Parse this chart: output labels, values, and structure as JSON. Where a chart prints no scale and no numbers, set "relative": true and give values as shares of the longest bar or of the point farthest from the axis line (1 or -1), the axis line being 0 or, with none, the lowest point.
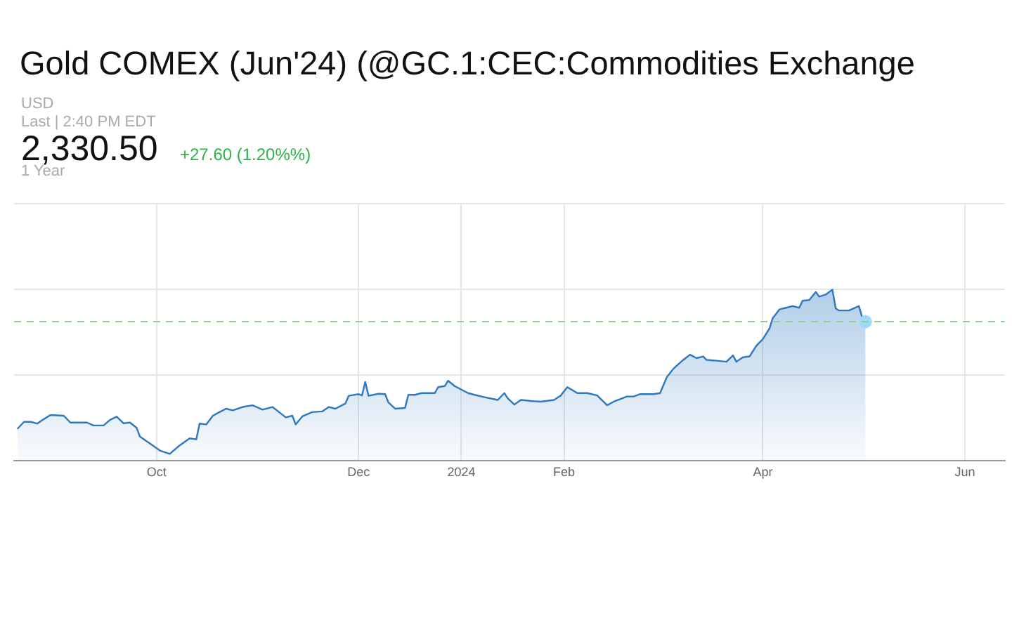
{
  "chart_data": {
    "type": "area",
    "title": "Gold COMEX (Jun'24) (@GC.1:CEC:Commodities Exchange",
    "annotations": [
      "USD",
      "Last | 2:40 PM EDT",
      "2,330.50",
      "+27.60 (1.20%%)",
      "1 Year"
    ],
    "relative": true,
    "color": "#2e78c0",
    "grid": true,
    "legend": false,
    "marker": "none",
    "xlim": [
      "2023-08-19",
      "2024-06-13"
    ],
    "xticks": [
      {
        "value": "2023-10-01",
        "label": "Oct"
      },
      {
        "value": "2023-12-01",
        "label": "Dec"
      },
      {
        "value": "2024-01-01",
        "label": "2024"
      },
      {
        "value": "2024-02-01",
        "label": "Feb"
      },
      {
        "value": "2024-04-01",
        "label": "Apr"
      },
      {
        "value": "2024-06-01",
        "label": "Jun"
      }
    ],
    "ref_lines": [
      {
        "axis": "y",
        "value": 0.813,
        "color": "#8fd18f",
        "line_style": "dashed"
      }
    ],
    "x": [
      "2023-08-20",
      "2023-08-22",
      "2023-08-24",
      "2023-08-26",
      "2023-08-28",
      "2023-08-30",
      "2023-09-03",
      "2023-09-05",
      "2023-09-10",
      "2023-09-12",
      "2023-09-15",
      "2023-09-17",
      "2023-09-19",
      "2023-09-21",
      "2023-09-23",
      "2023-09-25",
      "2023-09-26",
      "2023-09-29",
      "2023-10-02",
      "2023-10-05",
      "2023-10-08",
      "2023-10-11",
      "2023-10-13",
      "2023-10-14",
      "2023-10-16",
      "2023-10-18",
      "2023-10-20",
      "2023-10-22",
      "2023-10-24",
      "2023-10-27",
      "2023-10-30",
      "2023-11-02",
      "2023-11-05",
      "2023-11-07",
      "2023-11-09",
      "2023-11-11",
      "2023-11-12",
      "2023-11-14",
      "2023-11-17",
      "2023-11-20",
      "2023-11-22",
      "2023-11-24",
      "2023-11-27",
      "2023-11-28",
      "2023-12-01",
      "2023-12-02",
      "2023-12-03",
      "2023-12-04",
      "2023-12-07",
      "2023-12-09",
      "2023-12-10",
      "2023-12-12",
      "2023-12-15",
      "2023-12-16",
      "2023-12-18",
      "2023-12-20",
      "2023-12-24",
      "2023-12-25",
      "2023-12-27",
      "2023-12-28",
      "2023-12-30",
      "2024-01-03",
      "2024-01-05",
      "2024-01-08",
      "2024-01-12",
      "2024-01-14",
      "2024-01-15",
      "2024-01-17",
      "2024-01-19",
      "2024-01-22",
      "2024-01-25",
      "2024-01-29",
      "2024-01-31",
      "2024-02-02",
      "2024-02-05",
      "2024-02-08",
      "2024-02-11",
      "2024-02-14",
      "2024-02-16",
      "2024-02-20",
      "2024-02-22",
      "2024-02-24",
      "2024-02-28",
      "2024-03-01",
      "2024-03-03",
      "2024-03-05",
      "2024-03-08",
      "2024-03-10",
      "2024-03-12",
      "2024-03-14",
      "2024-03-15",
      "2024-03-18",
      "2024-03-21",
      "2024-03-23",
      "2024-03-24",
      "2024-03-26",
      "2024-03-28",
      "2024-03-30",
      "2024-04-01",
      "2024-04-03",
      "2024-04-04",
      "2024-04-06",
      "2024-04-08",
      "2024-04-10",
      "2024-04-12",
      "2024-04-13",
      "2024-04-15",
      "2024-04-17",
      "2024-04-18",
      "2024-04-20",
      "2024-04-22",
      "2024-04-23",
      "2024-04-24",
      "2024-04-27",
      "2024-04-30",
      "2024-05-01",
      "2024-05-02"
    ],
    "values": [
      0.187,
      0.228,
      0.228,
      0.218,
      0.244,
      0.268,
      0.264,
      0.224,
      0.224,
      0.207,
      0.207,
      0.24,
      0.258,
      0.22,
      0.224,
      0.193,
      0.142,
      0.102,
      0.061,
      0.041,
      0.091,
      0.132,
      0.126,
      0.218,
      0.213,
      0.264,
      0.285,
      0.305,
      0.295,
      0.315,
      0.325,
      0.299,
      0.315,
      0.285,
      0.254,
      0.264,
      0.213,
      0.26,
      0.285,
      0.289,
      0.315,
      0.305,
      0.335,
      0.38,
      0.39,
      0.382,
      0.461,
      0.38,
      0.392,
      0.39,
      0.341,
      0.305,
      0.309,
      0.386,
      0.386,
      0.396,
      0.396,
      0.431,
      0.437,
      0.468,
      0.437,
      0.396,
      0.386,
      0.372,
      0.356,
      0.396,
      0.366,
      0.329,
      0.356,
      0.35,
      0.346,
      0.356,
      0.382,
      0.431,
      0.396,
      0.396,
      0.382,
      0.325,
      0.346,
      0.376,
      0.376,
      0.39,
      0.39,
      0.396,
      0.488,
      0.538,
      0.59,
      0.62,
      0.6,
      0.61,
      0.59,
      0.585,
      0.579,
      0.616,
      0.579,
      0.605,
      0.61,
      0.671,
      0.711,
      0.773,
      0.834,
      0.884,
      0.894,
      0.904,
      0.894,
      0.935,
      0.939,
      0.986,
      0.959,
      0.971,
      1,
      0.89,
      0.878,
      0.878,
      0.904,
      0.837,
      0.813
    ]
  }
}
